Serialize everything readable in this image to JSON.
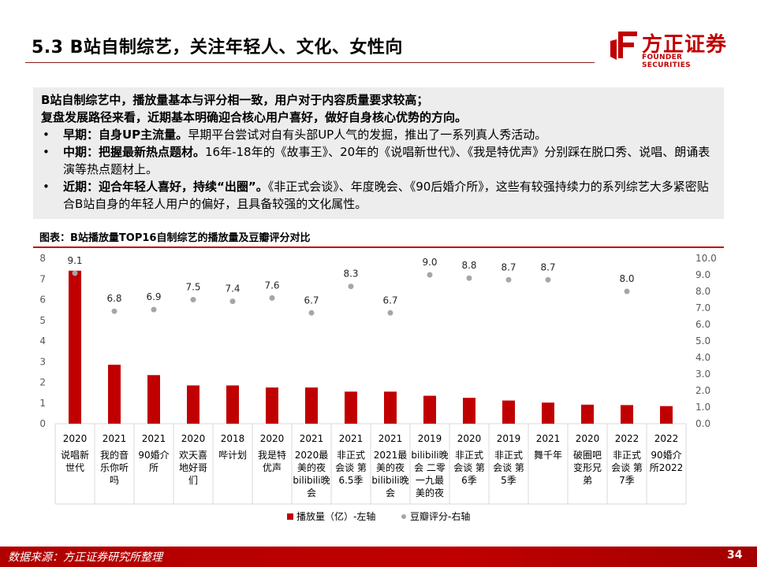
{
  "slide": {
    "title": "5.3 B站自制综艺，关注年轻人、文化、女性向",
    "page_number": "34",
    "source": "数据来源：方正证券研究所整理"
  },
  "brand": {
    "name_cn": "方正证券",
    "name_en": "FOUNDER SECURITIES",
    "color": "#c00000"
  },
  "summary": {
    "lead_line_1": "B站自制综艺中，播放量基本与评分相一致，用户对于内容质量要求较高；",
    "lead_line_2": "复盘发展路径来看，近期基本明确迎合核心用户喜好，做好自身核心优势的方向。",
    "bullets": [
      {
        "mark": "•",
        "head": "早期：自身UP主流量。",
        "text": "早期平台尝试对自有头部UP人气的发掘，推出了一系列真人秀活动。"
      },
      {
        "mark": "•",
        "head": "中期：把握最新热点题材。",
        "text": "16年-18年的《故事王》、20年的《说唱新世代》、《我是特优声》分别踩在脱口秀、说唱、朗诵表演等热点题材上。"
      },
      {
        "mark": "•",
        "head": "近期：迎合年轻人喜好，持续“出圈”。",
        "text": "《非正式会谈》、年度晚会、《90后婚介所》，这些有较强持续力的系列综艺大多紧密贴合B站自身的年轻人用户的偏好，且具备较强的文化属性。"
      }
    ]
  },
  "chart": {
    "caption": "图表：B站播放量TOP16自制综艺的播放量及豆瓣评分对比"
  },
  "chart_data": {
    "type": "bar",
    "title": "图表：B站播放量TOP16自制综艺的播放量及豆瓣评分对比",
    "categories": [
      {
        "year": "2020",
        "name": [
          "说唱新",
          "世代"
        ]
      },
      {
        "year": "2021",
        "name": [
          "我的音",
          "乐你听",
          "吗"
        ]
      },
      {
        "year": "2021",
        "name": [
          "90婚介",
          "所"
        ]
      },
      {
        "year": "2020",
        "name": [
          "欢天喜",
          "地好哥",
          "们"
        ]
      },
      {
        "year": "2018",
        "name": [
          "哔计划"
        ]
      },
      {
        "year": "2020",
        "name": [
          "我是特",
          "优声"
        ]
      },
      {
        "year": "2021",
        "name": [
          "2020最",
          "美的夜",
          "bilibili晚",
          "会"
        ]
      },
      {
        "year": "2021",
        "name": [
          "非正式",
          "会谈 第",
          "6.5季"
        ]
      },
      {
        "year": "2021",
        "name": [
          "2021最",
          "美的夜",
          "bilibili晚",
          "会"
        ]
      },
      {
        "year": "2019",
        "name": [
          "bilibili晚",
          "会 二零",
          "一九最",
          "美的夜"
        ]
      },
      {
        "year": "2020",
        "name": [
          "非正式",
          "会谈 第",
          "6季"
        ]
      },
      {
        "year": "2019",
        "name": [
          "非正式",
          "会谈 第",
          "5季"
        ]
      },
      {
        "year": "2021",
        "name": [
          "舞千年"
        ]
      },
      {
        "year": "2020",
        "name": [
          "破圈吧",
          "变形兄",
          "弟"
        ]
      },
      {
        "year": "2022",
        "name": [
          "非正式",
          "会谈 第",
          "7季"
        ]
      },
      {
        "year": "2022",
        "name": [
          "90婚介",
          "所2022"
        ]
      }
    ],
    "series": [
      {
        "name": "播放量（亿）-左轴",
        "axis": "left",
        "kind": "bar",
        "color": "#c00000",
        "values": [
          7.4,
          2.85,
          2.35,
          1.85,
          1.85,
          1.75,
          1.75,
          1.55,
          1.55,
          1.35,
          1.25,
          1.12,
          1.02,
          0.92,
          0.9,
          0.85
        ]
      },
      {
        "name": "豆瓣评分-右轴",
        "axis": "right",
        "kind": "marker",
        "color": "#a6a6a6",
        "values": [
          9.1,
          6.8,
          6.9,
          7.5,
          7.4,
          7.6,
          6.7,
          8.3,
          6.7,
          9.0,
          8.8,
          8.7,
          8.7,
          null,
          8.0,
          null
        ],
        "labels": [
          "9.1",
          "6.8",
          "6.9",
          "7.5",
          "7.4",
          "7.6",
          "6.7",
          "8.3",
          "6.7",
          "9.0",
          "8.8",
          "8.7",
          "8.7",
          "",
          "8.0",
          ""
        ]
      }
    ],
    "left_axis": {
      "ylim": [
        0,
        8
      ],
      "ticks": [
        "0",
        "1",
        "2",
        "3",
        "4",
        "5",
        "6",
        "7",
        "8"
      ]
    },
    "right_axis": {
      "ylim": [
        0,
        10
      ],
      "ticks": [
        "0.0",
        "1.0",
        "2.0",
        "3.0",
        "4.0",
        "5.0",
        "6.0",
        "7.0",
        "8.0",
        "9.0",
        "10.0"
      ]
    },
    "grid": false,
    "legend": "bottom-center"
  }
}
